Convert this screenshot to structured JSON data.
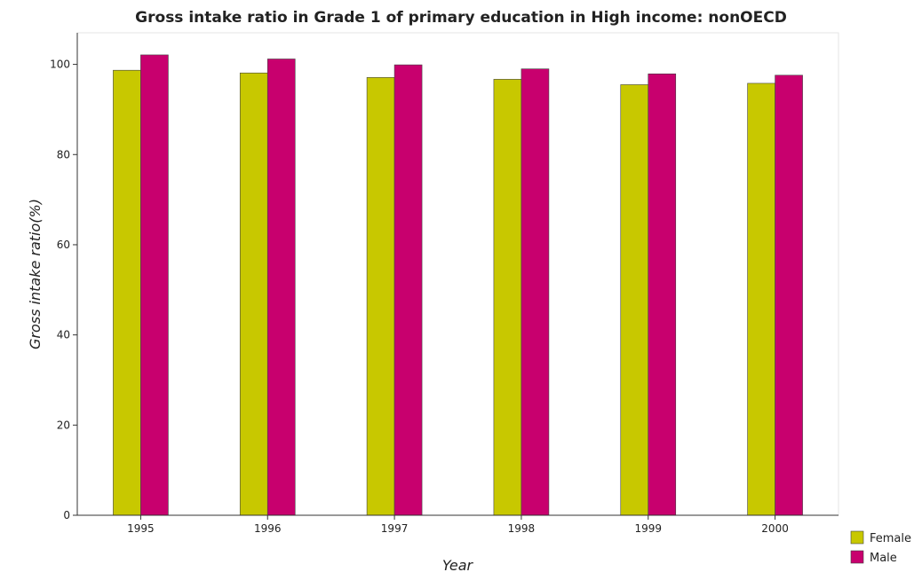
{
  "chart_data": {
    "type": "bar",
    "title": "Gross intake ratio in Grade 1 of primary education in High income: nonOECD",
    "xlabel": "Year",
    "ylabel": "Gross intake ratio(%)",
    "categories": [
      "1995",
      "1996",
      "1997",
      "1998",
      "1999",
      "2000"
    ],
    "series": [
      {
        "name": "Female",
        "color": "#c8c800",
        "values": [
          98.7,
          98.1,
          97.1,
          96.7,
          95.5,
          95.8
        ]
      },
      {
        "name": "Male",
        "color": "#c8006e",
        "values": [
          102.1,
          101.2,
          99.9,
          99.0,
          97.9,
          97.6
        ]
      }
    ],
    "ylim": [
      0,
      107
    ],
    "yticks": [
      0,
      20,
      40,
      60,
      80,
      100
    ],
    "grid": false,
    "legend_position": "bottom-right"
  }
}
